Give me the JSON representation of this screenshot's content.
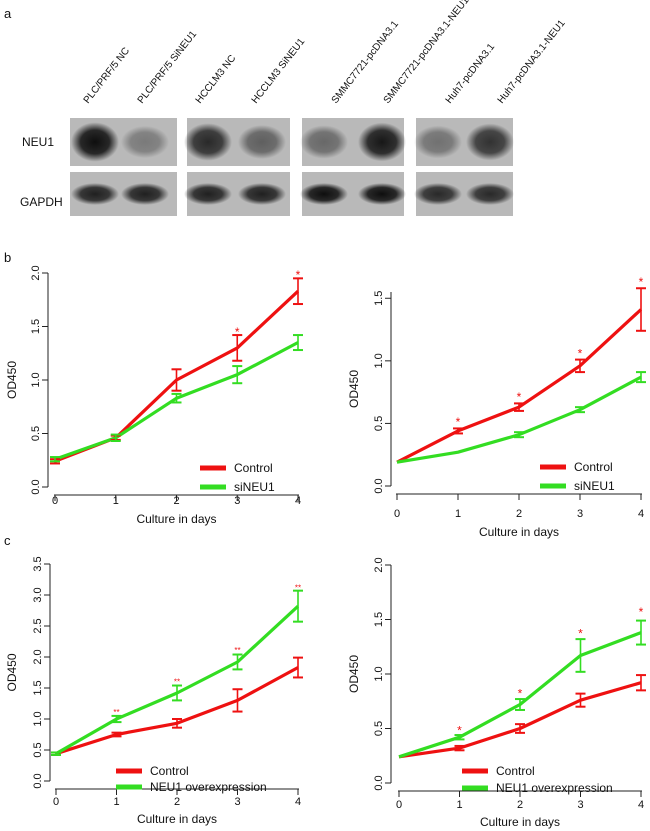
{
  "panel_a": {
    "panel_label": "a",
    "row_labels": [
      "NEU1",
      "GAPDH"
    ],
    "lane_labels": [
      "PLC/PRF/5 NC",
      "PLC/PRF/5  SiNEU1",
      "HCCLM3 NC",
      "HCCLM3 SiNEU1",
      "SMMC7721-pcDNA3.1",
      "SMMC7721-pcDNA3.1-NEU1",
      "Huh7-pcDNA3.1",
      "Huh7-pcDNA3.1-NEU1"
    ],
    "band_intensity": {
      "NEU1": [
        0.95,
        0.35,
        0.8,
        0.5,
        0.45,
        0.9,
        0.4,
        0.75
      ],
      "GAPDH": [
        0.85,
        0.85,
        0.85,
        0.85,
        0.95,
        0.95,
        0.8,
        0.8
      ]
    }
  },
  "panel_b_label": "b",
  "panel_c_label": "c",
  "colors": {
    "red": "#ee1111",
    "green": "#33dd22",
    "axis": "#222222",
    "star": "#ee1111"
  },
  "chart_data": [
    {
      "type": "line",
      "xlabel": "Culture in days",
      "ylabel": "OD450",
      "x": [
        0,
        1,
        2,
        3,
        4
      ],
      "xticks": [
        "0",
        "1",
        "2",
        "3",
        "4"
      ],
      "ylim": [
        0,
        2.0
      ],
      "yticks": [
        "0.0",
        "0.5",
        "1.0",
        "1.5",
        "2.0"
      ],
      "series": [
        {
          "name": "Control",
          "color": "#ee1111",
          "values": [
            0.24,
            0.46,
            1.0,
            1.3,
            1.83
          ],
          "errors": [
            0.02,
            0.02,
            0.1,
            0.12,
            0.12
          ]
        },
        {
          "name": "siNEU1",
          "color": "#33dd22",
          "values": [
            0.26,
            0.46,
            0.83,
            1.05,
            1.35
          ],
          "errors": [
            0.02,
            0.03,
            0.04,
            0.08,
            0.07
          ]
        }
      ],
      "annotations": [
        {
          "x": 3,
          "y": 1.45,
          "text": "*"
        },
        {
          "x": 4,
          "y": 1.98,
          "text": "*"
        }
      ],
      "legend": "bottom-right"
    },
    {
      "type": "line",
      "xlabel": "Culture in days",
      "ylabel": "OD450",
      "x": [
        0,
        1,
        2,
        3,
        4
      ],
      "xticks": [
        "0",
        "1",
        "2",
        "3",
        "4"
      ],
      "ylim": [
        0,
        1.55
      ],
      "yticks": [
        "0.0",
        "0.5",
        "1.0",
        "1.5"
      ],
      "series": [
        {
          "name": "Control",
          "color": "#ee1111",
          "values": [
            0.19,
            0.44,
            0.63,
            0.96,
            1.41
          ],
          "errors": [
            0.01,
            0.02,
            0.03,
            0.05,
            0.17
          ]
        },
        {
          "name": "siNEU1",
          "color": "#33dd22",
          "values": [
            0.19,
            0.27,
            0.41,
            0.61,
            0.87
          ],
          "errors": [
            0.01,
            0.01,
            0.02,
            0.02,
            0.04
          ]
        }
      ],
      "annotations": [
        {
          "x": 1,
          "y": 0.51,
          "text": "*"
        },
        {
          "x": 2,
          "y": 0.71,
          "text": "*"
        },
        {
          "x": 3,
          "y": 1.06,
          "text": "*"
        },
        {
          "x": 4,
          "y": 1.63,
          "text": "*"
        }
      ],
      "legend": "bottom-right"
    },
    {
      "type": "line",
      "xlabel": "Culture in days",
      "ylabel": "OD450",
      "x": [
        0,
        1,
        2,
        3,
        4
      ],
      "xticks": [
        "0",
        "1",
        "2",
        "3",
        "4"
      ],
      "ylim": [
        0,
        3.5
      ],
      "yticks": [
        "0.0",
        "0.5",
        "1.0",
        "1.5",
        "2.0",
        "2.5",
        "3.0",
        "3.5"
      ],
      "series": [
        {
          "name": "Control",
          "color": "#ee1111",
          "values": [
            0.44,
            0.75,
            0.93,
            1.3,
            1.83
          ],
          "errors": [
            0.02,
            0.03,
            0.07,
            0.18,
            0.16
          ]
        },
        {
          "name": "NEU1 overexpression",
          "color": "#33dd22",
          "values": [
            0.44,
            1.0,
            1.42,
            1.92,
            2.82
          ],
          "errors": [
            0.02,
            0.05,
            0.12,
            0.12,
            0.25
          ]
        }
      ],
      "annotations": [
        {
          "x": 1,
          "y": 1.13,
          "text": "**"
        },
        {
          "x": 2,
          "y": 1.62,
          "text": "**"
        },
        {
          "x": 3,
          "y": 2.13,
          "text": "**"
        },
        {
          "x": 4,
          "y": 3.14,
          "text": "**"
        }
      ],
      "legend": "bottom-right"
    },
    {
      "type": "line",
      "xlabel": "Culture in days",
      "ylabel": "OD450",
      "x": [
        0,
        1,
        2,
        3,
        4
      ],
      "xticks": [
        "0",
        "1",
        "2",
        "3",
        "4"
      ],
      "ylim": [
        0,
        2.0
      ],
      "yticks": [
        "0.0",
        "0.5",
        "1.0",
        "1.5",
        "2.0"
      ],
      "series": [
        {
          "name": "Control",
          "color": "#ee1111",
          "values": [
            0.24,
            0.32,
            0.5,
            0.76,
            0.92
          ],
          "errors": [
            0.01,
            0.02,
            0.04,
            0.06,
            0.07
          ]
        },
        {
          "name": "NEU1 overexpression",
          "color": "#33dd22",
          "values": [
            0.24,
            0.42,
            0.72,
            1.17,
            1.38
          ],
          "errors": [
            0.01,
            0.02,
            0.05,
            0.15,
            0.11
          ]
        }
      ],
      "annotations": [
        {
          "x": 1,
          "y": 0.48,
          "text": "*"
        },
        {
          "x": 2,
          "y": 0.82,
          "text": "*"
        },
        {
          "x": 3,
          "y": 1.37,
          "text": "*"
        },
        {
          "x": 4,
          "y": 1.57,
          "text": "*"
        }
      ],
      "legend": "bottom-right"
    }
  ]
}
